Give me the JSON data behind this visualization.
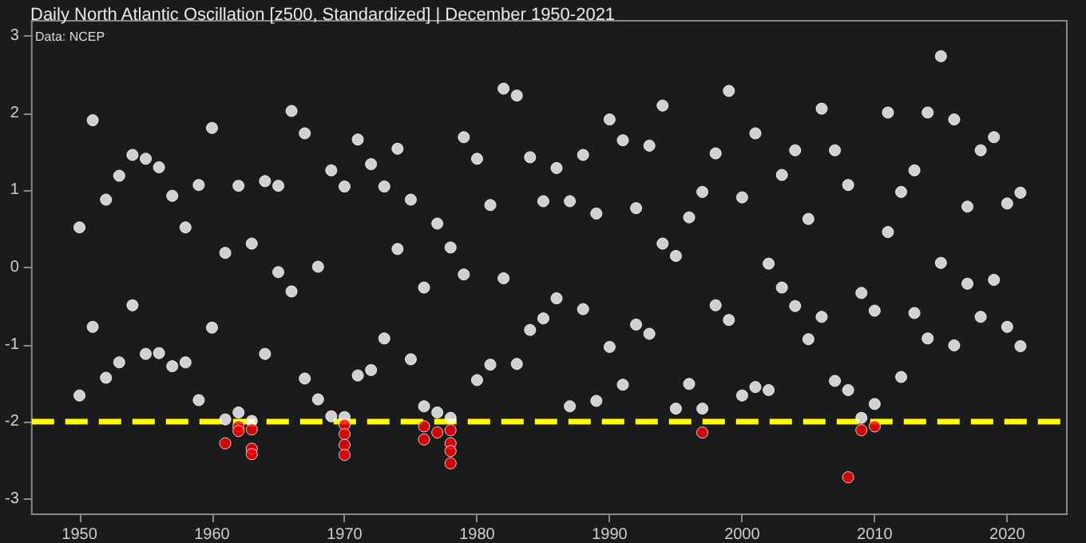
{
  "chart_data": {
    "type": "scatter",
    "title": "Daily North Atlantic Oscillation [z500, Standardized] | December 1950-2021",
    "annotations": [
      "Data: NCEP"
    ],
    "xlim": [
      1946.4,
      2024.5
    ],
    "xticks": [
      1950,
      1960,
      1970,
      1980,
      1990,
      2000,
      2010,
      2020
    ],
    "ylim": [
      -3.2,
      3.2
    ],
    "yticks": [
      -3,
      -2,
      -1,
      0,
      1,
      2,
      3
    ],
    "grid": false,
    "marker": "circle",
    "ref_lines": [
      {
        "axis": "y",
        "value": -2,
        "color": "#ffff00",
        "line_style": "dashed"
      }
    ],
    "series": [
      {
        "color": "#ffffff",
        "x": [
          1950,
          1950,
          1951,
          1951,
          1952,
          1952,
          1953,
          1953,
          1954,
          1954,
          1955,
          1955,
          1956,
          1956,
          1957,
          1957,
          1958,
          1958,
          1959,
          1959,
          1960,
          1960,
          1961,
          1961,
          1962,
          1962,
          1963,
          1963,
          1964,
          1964,
          1965,
          1965,
          1966,
          1966,
          1967,
          1967,
          1968,
          1968,
          1969,
          1969,
          1970,
          1970,
          1971,
          1971,
          1972,
          1972,
          1973,
          1973,
          1974,
          1974,
          1975,
          1975,
          1976,
          1976,
          1977,
          1977,
          1978,
          1978,
          1979,
          1979,
          1980,
          1980,
          1981,
          1981,
          1982,
          1982,
          1983,
          1983,
          1984,
          1984,
          1985,
          1985,
          1986,
          1986,
          1987,
          1987,
          1988,
          1988,
          1989,
          1989,
          1990,
          1990,
          1991,
          1991,
          1992,
          1992,
          1993,
          1993,
          1994,
          1994,
          1995,
          1995,
          1996,
          1996,
          1997,
          1997,
          1998,
          1998,
          1999,
          1999,
          2000,
          2000,
          2001,
          2001,
          2002,
          2002,
          2003,
          2003,
          2004,
          2004,
          2005,
          2005,
          2006,
          2006,
          2007,
          2007,
          2008,
          2008,
          2009,
          2009,
          2010,
          2010,
          2011,
          2011,
          2012,
          2012,
          2013,
          2013,
          2014,
          2014,
          2015,
          2015,
          2016,
          2016,
          2017,
          2017,
          2018,
          2018,
          2019,
          2019,
          2020,
          2020,
          2021,
          2021
        ],
        "values": [
          0.52,
          -1.66,
          1.91,
          -0.77,
          0.88,
          -1.43,
          1.19,
          -1.23,
          1.46,
          -0.49,
          1.41,
          -1.12,
          1.3,
          -1.11,
          0.93,
          -1.28,
          0.52,
          -1.23,
          1.07,
          -1.72,
          1.81,
          -0.78,
          0.19,
          -1.97,
          1.06,
          -1.88,
          0.31,
          -1.99,
          1.12,
          -1.12,
          1.06,
          -0.06,
          2.03,
          -0.31,
          1.74,
          -1.44,
          0.01,
          -1.71,
          1.26,
          -1.93,
          1.05,
          -1.94,
          1.66,
          -1.4,
          1.34,
          -1.33,
          1.05,
          -0.92,
          1.54,
          0.24,
          0.88,
          -1.19,
          -0.26,
          -1.8,
          0.57,
          -1.88,
          0.26,
          -1.95,
          1.69,
          -0.09,
          1.41,
          -1.46,
          0.81,
          -1.26,
          2.32,
          -0.14,
          2.23,
          -1.25,
          1.43,
          -0.81,
          0.86,
          -0.66,
          1.29,
          -0.4,
          0.86,
          -1.8,
          1.46,
          -0.54,
          0.7,
          -1.73,
          1.92,
          -1.03,
          1.65,
          -1.52,
          0.77,
          -0.74,
          1.58,
          -0.86,
          2.1,
          0.31,
          0.15,
          -1.83,
          0.65,
          -1.51,
          0.98,
          -1.83,
          1.48,
          -0.49,
          2.29,
          -0.68,
          0.91,
          -1.66,
          1.74,
          -1.55,
          0.05,
          -1.59,
          1.2,
          -0.26,
          1.52,
          -0.5,
          0.63,
          -0.93,
          2.06,
          -0.64,
          1.52,
          -1.47,
          1.07,
          -1.59,
          -0.33,
          -1.95,
          -0.56,
          -1.77,
          2.01,
          0.46,
          0.98,
          -1.42,
          1.26,
          -0.59,
          2.01,
          -0.92,
          2.74,
          0.06,
          1.92,
          -1.01,
          0.79,
          -0.21,
          1.52,
          -0.64,
          1.69,
          -0.16,
          0.83,
          -0.77,
          0.97,
          -1.02
        ]
      },
      {
        "color": "#ff0000",
        "x": [
          1961,
          1962,
          1962,
          1963,
          1963,
          1963,
          1970,
          1970,
          1970,
          1970,
          1976,
          1976,
          1977,
          1978,
          1978,
          1978,
          1978,
          1997,
          2008,
          2009,
          2010
        ],
        "values": [
          -2.28,
          -2.06,
          -2.12,
          -2.1,
          -2.35,
          -2.42,
          -2.04,
          -2.16,
          -2.3,
          -2.43,
          -2.06,
          -2.23,
          -2.14,
          -2.11,
          -2.28,
          -2.38,
          -2.54,
          -2.14,
          -2.72,
          -2.11,
          -2.06
        ]
      }
    ]
  }
}
